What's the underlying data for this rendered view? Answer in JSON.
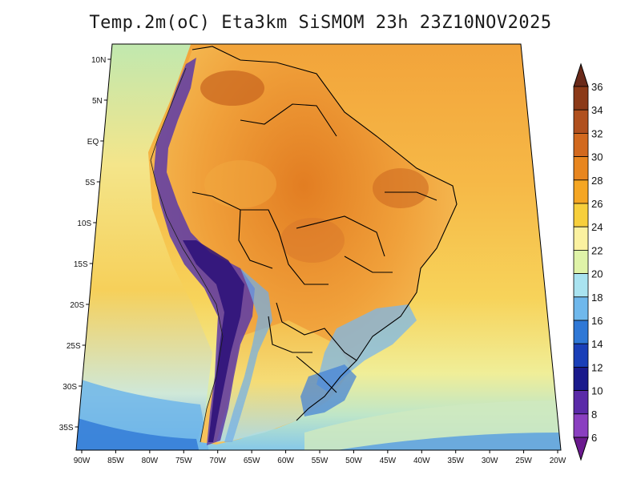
{
  "title": "Temp.2m(oC) Eta3km SiSMOM 23h 23Z10NOV2025",
  "map": {
    "lat_labels": [
      "10N",
      "5N",
      "EQ",
      "5S",
      "10S",
      "15S",
      "20S",
      "25S",
      "30S",
      "35S"
    ],
    "lon_labels": [
      "90W",
      "85W",
      "80W",
      "75W",
      "70W",
      "65W",
      "60W",
      "55W",
      "50W",
      "45W",
      "40W",
      "35W",
      "30W",
      "25W",
      "20W"
    ],
    "lat_range": [
      12,
      -38
    ],
    "lon_range": [
      -91,
      -20
    ]
  },
  "colorbar": {
    "labels": [
      "36",
      "34",
      "32",
      "30",
      "28",
      "26",
      "24",
      "22",
      "20",
      "18",
      "16",
      "14",
      "12",
      "10",
      "8",
      "6"
    ],
    "colors": [
      "#6a2a1a",
      "#8c3a18",
      "#b0501e",
      "#d2691e",
      "#e8861f",
      "#f5a623",
      "#f7cf3c",
      "#fbf1a0",
      "#dff3a8",
      "#a9e3f0",
      "#6fb8ec",
      "#2f78d6",
      "#1a3fb8",
      "#1a1a8c",
      "#5a2aa8",
      "#8a3fc0",
      "#6b1a8f"
    ]
  },
  "colors": {
    "ocean_warm": "#f5b342",
    "ocean_mid": "#f6d35a",
    "ocean_cool": "#e9f0a0",
    "ocean_south": "#8ccff0",
    "land_hot": "#e8862a",
    "land_warm": "#f0a238",
    "andes": "#5a3aa8",
    "andes_deep": "#3a1a8a",
    "border": "#000000"
  }
}
